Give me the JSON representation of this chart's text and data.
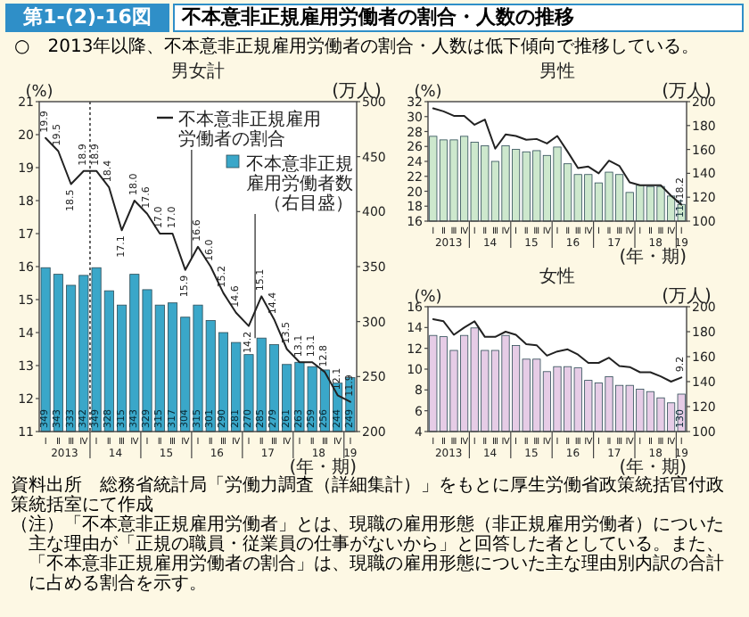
{
  "chart_data": [
    {
      "type": "other",
      "title": "第1-(2)-16図",
      "subtitle": "不本意非正規雇用労働者の割合・人数の推移",
      "annotations": [
        "○　2013年以降、不本意非正規雇用労働者の割合・人数は低下傾向で推移している。",
        "資料出所　総務省統計局「労働力調査（詳細集計）」をもとに厚生労働省政策統括官付政策統括室にて作成",
        "（注）「不本意非正規雇用労働者」とは、現職の雇用形態（非正規雇用労働者）についた主な理由が「正規の職員・従業員の仕事がないから」と回答した者としている。また、「不本意非正規雇用労働者の割合」は、現職の雇用形態についた主な理由別内訳の合計に占める割合を示す。"
      ]
    },
    {
      "type": "bar",
      "title": "男女計",
      "xlabel": "(年・期)",
      "ylabel": "(%)",
      "y2label": "(万人)",
      "categories": [
        "Ⅰ",
        "Ⅱ",
        "Ⅲ",
        "Ⅳ",
        "Ⅰ",
        "Ⅱ",
        "Ⅲ",
        "Ⅳ",
        "Ⅰ",
        "Ⅱ",
        "Ⅲ",
        "Ⅳ",
        "Ⅰ",
        "Ⅱ",
        "Ⅲ",
        "Ⅳ",
        "Ⅰ",
        "Ⅱ",
        "Ⅲ",
        "Ⅳ",
        "Ⅰ",
        "Ⅱ",
        "Ⅲ",
        "Ⅳ",
        "Ⅰ"
      ],
      "annotations": [
        "2013",
        "14",
        "15",
        "16",
        "17",
        "18",
        "19"
      ],
      "ylim": [
        11,
        21
      ],
      "yticks": [
        11,
        12,
        13,
        14,
        15,
        16,
        17,
        18,
        19,
        20,
        21
      ],
      "y2lim": [
        200,
        500
      ],
      "y2ticks": [
        200,
        250,
        300,
        350,
        400,
        450,
        500
      ],
      "legend": "top right",
      "series": [
        {
          "type": "bar",
          "axis": "y2",
          "name": "不本意非正規雇用労働者数（右目盛）",
          "color": "#3aa7c9",
          "values": [
            349,
            343,
            333,
            342,
            349,
            328,
            315,
            343,
            329,
            315,
            317,
            304,
            315,
            301,
            290,
            281,
            270,
            285,
            279,
            261,
            263,
            259,
            256,
            244,
            249
          ],
          "value_labels": [
            "349",
            "343",
            "333",
            "342",
            "349",
            "328",
            "315",
            "343",
            "329",
            "315",
            "317",
            "304",
            "315",
            "301",
            "290",
            "281",
            "270",
            "285",
            "279",
            "261",
            "263",
            "259",
            "256",
            "244",
            "249"
          ]
        },
        {
          "type": "line",
          "name": "不本意非正規雇用労働者の割合",
          "color": "#222222",
          "values": [
            19.9,
            19.5,
            18.5,
            18.9,
            18.9,
            18.4,
            17.1,
            18.0,
            17.6,
            17.0,
            17.0,
            15.9,
            16.6,
            16.0,
            15.2,
            14.6,
            14.2,
            15.1,
            14.4,
            13.5,
            13.1,
            13.1,
            12.8,
            12.1,
            11.9
          ],
          "value_labels": [
            "19.9",
            "19.5",
            "18.5",
            "18.9",
            "18.9",
            "18.4",
            "17.1",
            "18.0",
            "17.6",
            "17.0",
            "17.0",
            "15.9",
            "16.6",
            "16.0",
            "15.2",
            "14.6",
            "14.2",
            "15.1",
            "14.4",
            "13.5",
            "13.1",
            "13.1",
            "12.8",
            "12.1",
            "11.9"
          ]
        }
      ]
    },
    {
      "type": "bar",
      "title": "男性",
      "xlabel": "(年・期)",
      "ylabel": "(%)",
      "y2label": "(万人)",
      "categories": [
        "Ⅰ",
        "Ⅱ",
        "Ⅲ",
        "Ⅳ",
        "Ⅰ",
        "Ⅱ",
        "Ⅲ",
        "Ⅳ",
        "Ⅰ",
        "Ⅱ",
        "Ⅲ",
        "Ⅳ",
        "Ⅰ",
        "Ⅱ",
        "Ⅲ",
        "Ⅳ",
        "Ⅰ",
        "Ⅱ",
        "Ⅲ",
        "Ⅳ",
        "Ⅰ",
        "Ⅱ",
        "Ⅲ",
        "Ⅳ",
        "Ⅰ"
      ],
      "annotations": [
        "2013",
        "14",
        "15",
        "16",
        "17",
        "18",
        "19"
      ],
      "ylim": [
        16,
        32
      ],
      "yticks": [
        16,
        18,
        20,
        22,
        24,
        26,
        28,
        30,
        32
      ],
      "y2lim": [
        100,
        200
      ],
      "y2ticks": [
        100,
        120,
        140,
        160,
        180,
        200
      ],
      "series": [
        {
          "type": "bar",
          "axis": "y2",
          "color": "#cde8cd",
          "values": [
            171,
            168,
            168,
            171,
            166,
            163,
            150,
            163,
            160,
            158,
            159,
            155,
            162,
            148,
            139,
            139,
            132,
            141,
            139,
            124,
            130,
            129,
            129,
            121,
            114
          ],
          "value_labels": [
            null,
            null,
            null,
            null,
            null,
            null,
            null,
            null,
            null,
            null,
            null,
            null,
            null,
            null,
            null,
            null,
            null,
            null,
            null,
            null,
            null,
            null,
            null,
            null,
            "114"
          ]
        },
        {
          "type": "line",
          "color": "#222222",
          "values": [
            31.1,
            30.7,
            30.1,
            30.1,
            28.9,
            29.6,
            25.7,
            27.6,
            27.4,
            26.9,
            27.0,
            26.4,
            27.4,
            25.3,
            23.1,
            23.3,
            22.4,
            24.1,
            23.4,
            21.2,
            20.8,
            20.8,
            20.8,
            19.4,
            18.2
          ],
          "value_labels": [
            null,
            null,
            null,
            null,
            null,
            null,
            null,
            null,
            null,
            null,
            null,
            null,
            null,
            null,
            null,
            null,
            null,
            null,
            null,
            null,
            null,
            null,
            null,
            null,
            "18.2"
          ]
        }
      ]
    },
    {
      "type": "bar",
      "title": "女性",
      "xlabel": "(年・期)",
      "ylabel": "(%)",
      "y2label": "(万人)",
      "categories": [
        "Ⅰ",
        "Ⅱ",
        "Ⅲ",
        "Ⅳ",
        "Ⅰ",
        "Ⅱ",
        "Ⅲ",
        "Ⅳ",
        "Ⅰ",
        "Ⅱ",
        "Ⅲ",
        "Ⅳ",
        "Ⅰ",
        "Ⅱ",
        "Ⅲ",
        "Ⅳ",
        "Ⅰ",
        "Ⅱ",
        "Ⅲ",
        "Ⅳ",
        "Ⅰ",
        "Ⅱ",
        "Ⅲ",
        "Ⅳ",
        "Ⅰ"
      ],
      "annotations": [
        "2013",
        "14",
        "15",
        "16",
        "17",
        "18",
        "19"
      ],
      "ylim": [
        4,
        16
      ],
      "yticks": [
        4,
        6,
        8,
        10,
        12,
        14,
        16
      ],
      "y2lim": [
        100,
        200
      ],
      "y2ticks": [
        100,
        120,
        140,
        160,
        180,
        200
      ],
      "series": [
        {
          "type": "bar",
          "axis": "y2",
          "color": "#e6cce6",
          "values": [
            177,
            176,
            165,
            177,
            183,
            165,
            165,
            177,
            169,
            158,
            158,
            148,
            152,
            152,
            151,
            141,
            139,
            144,
            137,
            137,
            134,
            132,
            127,
            123,
            130
          ],
          "value_labels": [
            null,
            null,
            null,
            null,
            null,
            null,
            null,
            null,
            null,
            null,
            null,
            null,
            null,
            null,
            null,
            null,
            null,
            null,
            null,
            null,
            null,
            null,
            null,
            null,
            "130"
          ]
        },
        {
          "type": "line",
          "color": "#222222",
          "values": [
            14.8,
            14.6,
            13.3,
            14.0,
            14.6,
            13.1,
            13.1,
            13.6,
            13.3,
            12.4,
            12.3,
            11.3,
            11.7,
            11.9,
            11.4,
            10.6,
            10.6,
            11.1,
            10.3,
            10.2,
            9.7,
            9.7,
            9.3,
            8.8,
            9.2
          ],
          "value_labels": [
            null,
            null,
            null,
            null,
            null,
            null,
            null,
            null,
            null,
            null,
            null,
            null,
            null,
            null,
            null,
            null,
            null,
            null,
            null,
            null,
            null,
            null,
            null,
            null,
            "9.2"
          ]
        }
      ]
    }
  ]
}
